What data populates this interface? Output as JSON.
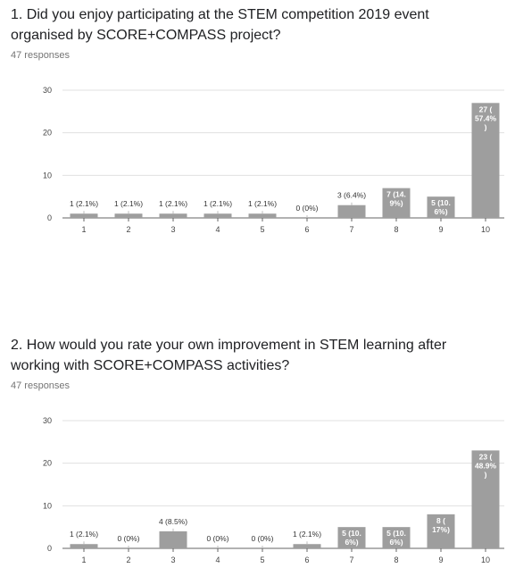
{
  "questions": [
    {
      "title_line1": "1. Did you enjoy participating at the STEM competition 2019 event",
      "title_line2": "organised by SCORE+COMPASS project?",
      "responses": "47 responses"
    },
    {
      "title_line1": "2. How would you rate your own improvement in STEM learning after",
      "title_line2": "working with SCORE+COMPASS activities?",
      "responses": "47 responses"
    }
  ],
  "colors": {
    "bar": "#9e9e9e",
    "grid": "#e0e0e0",
    "axis": "#666666"
  },
  "chart_data": [
    {
      "type": "bar",
      "categories": [
        "1",
        "2",
        "3",
        "4",
        "5",
        "6",
        "7",
        "8",
        "9",
        "10"
      ],
      "values": [
        1,
        1,
        1,
        1,
        1,
        0,
        3,
        7,
        5,
        27
      ],
      "data_labels": [
        "1 (2.1%)",
        "1 (2.1%)",
        "1 (2.1%)",
        "1 (2.1%)",
        "1 (2.1%)",
        "0 (0%)",
        "3 (6.4%)",
        "7 (14.9%)",
        "5 (10.6%)",
        "27 (57.4%)"
      ],
      "y_ticks": [
        "0",
        "10",
        "20",
        "30"
      ],
      "ylim": [
        0,
        30
      ],
      "grid": true
    },
    {
      "type": "bar",
      "categories": [
        "1",
        "2",
        "3",
        "4",
        "5",
        "6",
        "7",
        "8",
        "9",
        "10"
      ],
      "values": [
        1,
        0,
        4,
        0,
        0,
        1,
        5,
        5,
        8,
        23
      ],
      "data_labels": [
        "1 (2.1%)",
        "0 (0%)",
        "4 (8.5%)",
        "0 (0%)",
        "0 (0%)",
        "1 (2.1%)",
        "5 (10.6%)",
        "5 (10.6%)",
        "8 (17%)",
        "23 (48.9%)"
      ],
      "y_ticks": [
        "0",
        "10",
        "20",
        "30"
      ],
      "ylim": [
        0,
        30
      ],
      "grid": true
    }
  ]
}
